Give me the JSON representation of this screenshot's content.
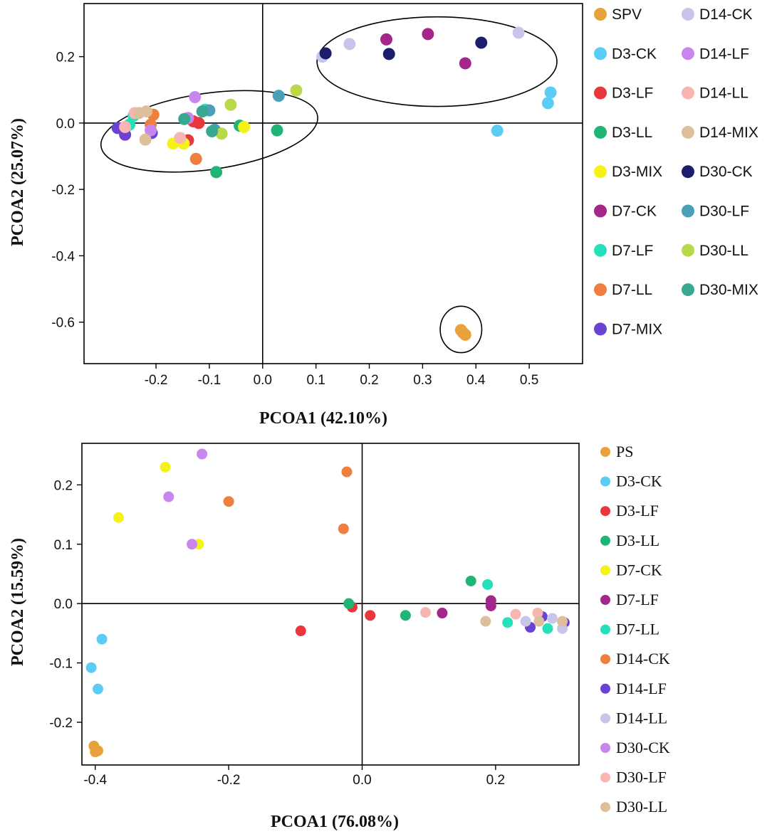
{
  "chart_data": [
    {
      "type": "scatter",
      "id": "p1",
      "xlabel": "PCOA1 (42.10%)",
      "ylabel": "PCOA2 (25.07%)",
      "xlim": [
        -0.335,
        0.6
      ],
      "ylim": [
        -0.725,
        0.36
      ],
      "x_ticks": [
        -0.2,
        -0.1,
        0.0,
        0.1,
        0.2,
        0.3,
        0.4,
        0.5
      ],
      "x_tick_labels": [
        "-0.2",
        "-0.1",
        "0.0",
        "0.1",
        "0.2",
        "0.3",
        "0.4",
        "0.5"
      ],
      "y_ticks": [
        0.2,
        0.0,
        -0.2,
        -0.4,
        -0.6
      ],
      "y_tick_labels": [
        "0.2",
        "0.0",
        "-0.2",
        "-0.4",
        "-0.6"
      ],
      "zero_lines": true,
      "ellipses": [
        {
          "cx": -0.1,
          "cy": -0.025,
          "rx": 0.205,
          "ry": 0.115,
          "rotation_deg": -8
        },
        {
          "cx": 0.327,
          "cy": 0.185,
          "rx": 0.225,
          "ry": 0.135,
          "rotation_deg": 0
        },
        {
          "cx": 0.372,
          "cy": -0.622,
          "rx": 0.039,
          "ry": 0.07,
          "rotation_deg": 0
        }
      ],
      "legend": {
        "position": "right",
        "columns": 2,
        "order": [
          "SPV",
          "D14-CK",
          "D3-CK",
          "D14-LF",
          "D3-LF",
          "D14-LL",
          "D3-LL",
          "D14-MIX",
          "D3-MIX",
          "D30-CK",
          "D7-CK",
          "D30-LF",
          "D7-LF",
          "D30-LL",
          "D7-LL",
          "D30-MIX",
          "D7-MIX"
        ]
      },
      "series": [
        {
          "name": "SPV",
          "color": "#e9a23b",
          "points": [
            [
              0.372,
              -0.624
            ],
            [
              0.376,
              -0.632
            ],
            [
              0.38,
              -0.638
            ]
          ]
        },
        {
          "name": "D3-CK",
          "color": "#5bcdf4",
          "points": [
            [
              0.54,
              0.092
            ],
            [
              0.535,
              0.06
            ],
            [
              0.44,
              -0.023
            ]
          ]
        },
        {
          "name": "D3-LF",
          "color": "#e8373d",
          "points": [
            [
              -0.14,
              -0.052
            ],
            [
              -0.13,
              0.005
            ],
            [
              -0.12,
              0.0
            ]
          ]
        },
        {
          "name": "D3-LL",
          "color": "#1fb574",
          "points": [
            [
              0.027,
              -0.022
            ],
            [
              -0.043,
              -0.008
            ],
            [
              -0.087,
              -0.148
            ]
          ]
        },
        {
          "name": "D3-MIX",
          "color": "#f5f218",
          "points": [
            [
              -0.168,
              -0.062
            ],
            [
              -0.148,
              -0.062
            ],
            [
              -0.035,
              -0.012
            ]
          ]
        },
        {
          "name": "D7-CK",
          "color": "#a52689",
          "points": [
            [
              0.232,
              0.252
            ],
            [
              0.31,
              0.268
            ],
            [
              0.38,
              0.18
            ]
          ]
        },
        {
          "name": "D7-LF",
          "color": "#26e0bb",
          "points": [
            [
              -0.242,
              0.022
            ],
            [
              -0.25,
              -0.005
            ],
            [
              -0.108,
              0.04
            ]
          ]
        },
        {
          "name": "D7-LL",
          "color": "#ee7f3f",
          "points": [
            [
              -0.205,
              0.025
            ],
            [
              -0.21,
              -0.005
            ],
            [
              -0.125,
              -0.108
            ]
          ]
        },
        {
          "name": "D7-MIX",
          "color": "#6a43d2",
          "points": [
            [
              -0.272,
              -0.015
            ],
            [
              -0.258,
              -0.035
            ],
            [
              -0.208,
              -0.03
            ]
          ]
        },
        {
          "name": "D14-CK",
          "color": "#c9c4ea",
          "points": [
            [
              0.48,
              0.272
            ],
            [
              0.163,
              0.238
            ],
            [
              0.112,
              0.2
            ]
          ]
        },
        {
          "name": "D14-LF",
          "color": "#c787ee",
          "points": [
            [
              -0.127,
              0.078
            ],
            [
              -0.21,
              -0.022
            ],
            [
              -0.14,
              0.015
            ]
          ]
        },
        {
          "name": "D14-LL",
          "color": "#f7b6b2",
          "points": [
            [
              -0.258,
              -0.012
            ],
            [
              -0.155,
              -0.045
            ],
            [
              -0.24,
              0.03
            ]
          ]
        },
        {
          "name": "D14-MIX",
          "color": "#ddbf9b",
          "points": [
            [
              -0.22,
              -0.05
            ],
            [
              -0.218,
              0.035
            ],
            [
              -0.232,
              0.03
            ]
          ]
        },
        {
          "name": "D30-CK",
          "color": "#1b1f6b",
          "points": [
            [
              0.118,
              0.21
            ],
            [
              0.237,
              0.208
            ],
            [
              0.41,
              0.242
            ]
          ]
        },
        {
          "name": "D30-LF",
          "color": "#4a9fb9",
          "points": [
            [
              0.03,
              0.082
            ],
            [
              -0.1,
              0.038
            ],
            [
              -0.09,
              -0.02
            ]
          ]
        },
        {
          "name": "D30-LL",
          "color": "#b7d94a",
          "points": [
            [
              0.063,
              0.098
            ],
            [
              -0.06,
              0.055
            ],
            [
              -0.077,
              -0.032
            ]
          ]
        },
        {
          "name": "D30-MIX",
          "color": "#39a893",
          "points": [
            [
              -0.147,
              0.012
            ],
            [
              -0.113,
              0.035
            ],
            [
              -0.095,
              -0.025
            ]
          ]
        }
      ]
    },
    {
      "type": "scatter",
      "id": "p2",
      "xlabel": "PCOA1 (76.08%)",
      "ylabel": "PCOA2 (15.59%)",
      "xlim": [
        -0.42,
        0.325
      ],
      "ylim": [
        -0.272,
        0.27
      ],
      "x_ticks": [
        -0.4,
        -0.2,
        0.0,
        0.2
      ],
      "x_tick_labels": [
        "-0.4",
        "-0.2",
        "0.0",
        "0.2"
      ],
      "y_ticks": [
        0.2,
        0.1,
        0.0,
        -0.1,
        -0.2
      ],
      "y_tick_labels": [
        "0.2",
        "0.1",
        "0.0",
        "-0.1",
        "-0.2"
      ],
      "zero_lines": true,
      "legend": {
        "position": "right",
        "columns": 1,
        "order": [
          "PS",
          "D3-CK",
          "D3-LF",
          "D3-LL",
          "D7-CK",
          "D7-LF",
          "D7-LL",
          "D14-CK",
          "D14-LF",
          "D14-LL",
          "D30-CK",
          "D30-LF",
          "D30-LL"
        ]
      },
      "series": [
        {
          "name": "PS",
          "color": "#e9a23b",
          "points": [
            [
              -0.402,
              -0.24
            ],
            [
              -0.4,
              -0.25
            ],
            [
              -0.396,
              -0.248
            ]
          ]
        },
        {
          "name": "D3-CK",
          "color": "#5bcdf4",
          "points": [
            [
              -0.39,
              -0.06
            ],
            [
              -0.406,
              -0.108
            ],
            [
              -0.396,
              -0.144
            ]
          ]
        },
        {
          "name": "D3-LF",
          "color": "#e8373d",
          "points": [
            [
              -0.092,
              -0.046
            ],
            [
              -0.015,
              -0.006
            ],
            [
              0.012,
              -0.02
            ]
          ]
        },
        {
          "name": "D3-LL",
          "color": "#1fb574",
          "points": [
            [
              -0.02,
              0.0
            ],
            [
              0.065,
              -0.02
            ],
            [
              0.163,
              0.038
            ]
          ]
        },
        {
          "name": "D7-CK",
          "color": "#f5f218",
          "points": [
            [
              -0.365,
              0.145
            ],
            [
              -0.295,
              0.23
            ],
            [
              -0.245,
              0.1
            ]
          ]
        },
        {
          "name": "D7-LF",
          "color": "#a52689",
          "points": [
            [
              0.12,
              -0.016
            ],
            [
              0.193,
              0.005
            ],
            [
              0.193,
              -0.004
            ]
          ]
        },
        {
          "name": "D7-LL",
          "color": "#26e0bb",
          "points": [
            [
              0.188,
              0.032
            ],
            [
              0.218,
              -0.032
            ],
            [
              0.278,
              -0.042
            ]
          ]
        },
        {
          "name": "D14-CK",
          "color": "#ee7f3f",
          "points": [
            [
              -0.023,
              0.222
            ],
            [
              -0.2,
              0.172
            ],
            [
              -0.028,
              0.126
            ]
          ]
        },
        {
          "name": "D14-LF",
          "color": "#6a43d2",
          "points": [
            [
              0.252,
              -0.04
            ],
            [
              0.27,
              -0.022
            ],
            [
              0.303,
              -0.032
            ]
          ]
        },
        {
          "name": "D14-LL",
          "color": "#c9c4ea",
          "points": [
            [
              0.245,
              -0.03
            ],
            [
              0.285,
              -0.025
            ],
            [
              0.3,
              -0.042
            ]
          ]
        },
        {
          "name": "D30-CK",
          "color": "#c787ee",
          "points": [
            [
              -0.24,
              0.252
            ],
            [
              -0.29,
              0.18
            ],
            [
              -0.255,
              0.1
            ]
          ]
        },
        {
          "name": "D30-LF",
          "color": "#f7b6b2",
          "points": [
            [
              0.095,
              -0.015
            ],
            [
              0.23,
              -0.018
            ],
            [
              0.263,
              -0.016
            ]
          ]
        },
        {
          "name": "D30-LL",
          "color": "#ddbf9b",
          "points": [
            [
              0.185,
              -0.03
            ],
            [
              0.265,
              -0.03
            ],
            [
              0.3,
              -0.03
            ]
          ]
        }
      ]
    }
  ]
}
